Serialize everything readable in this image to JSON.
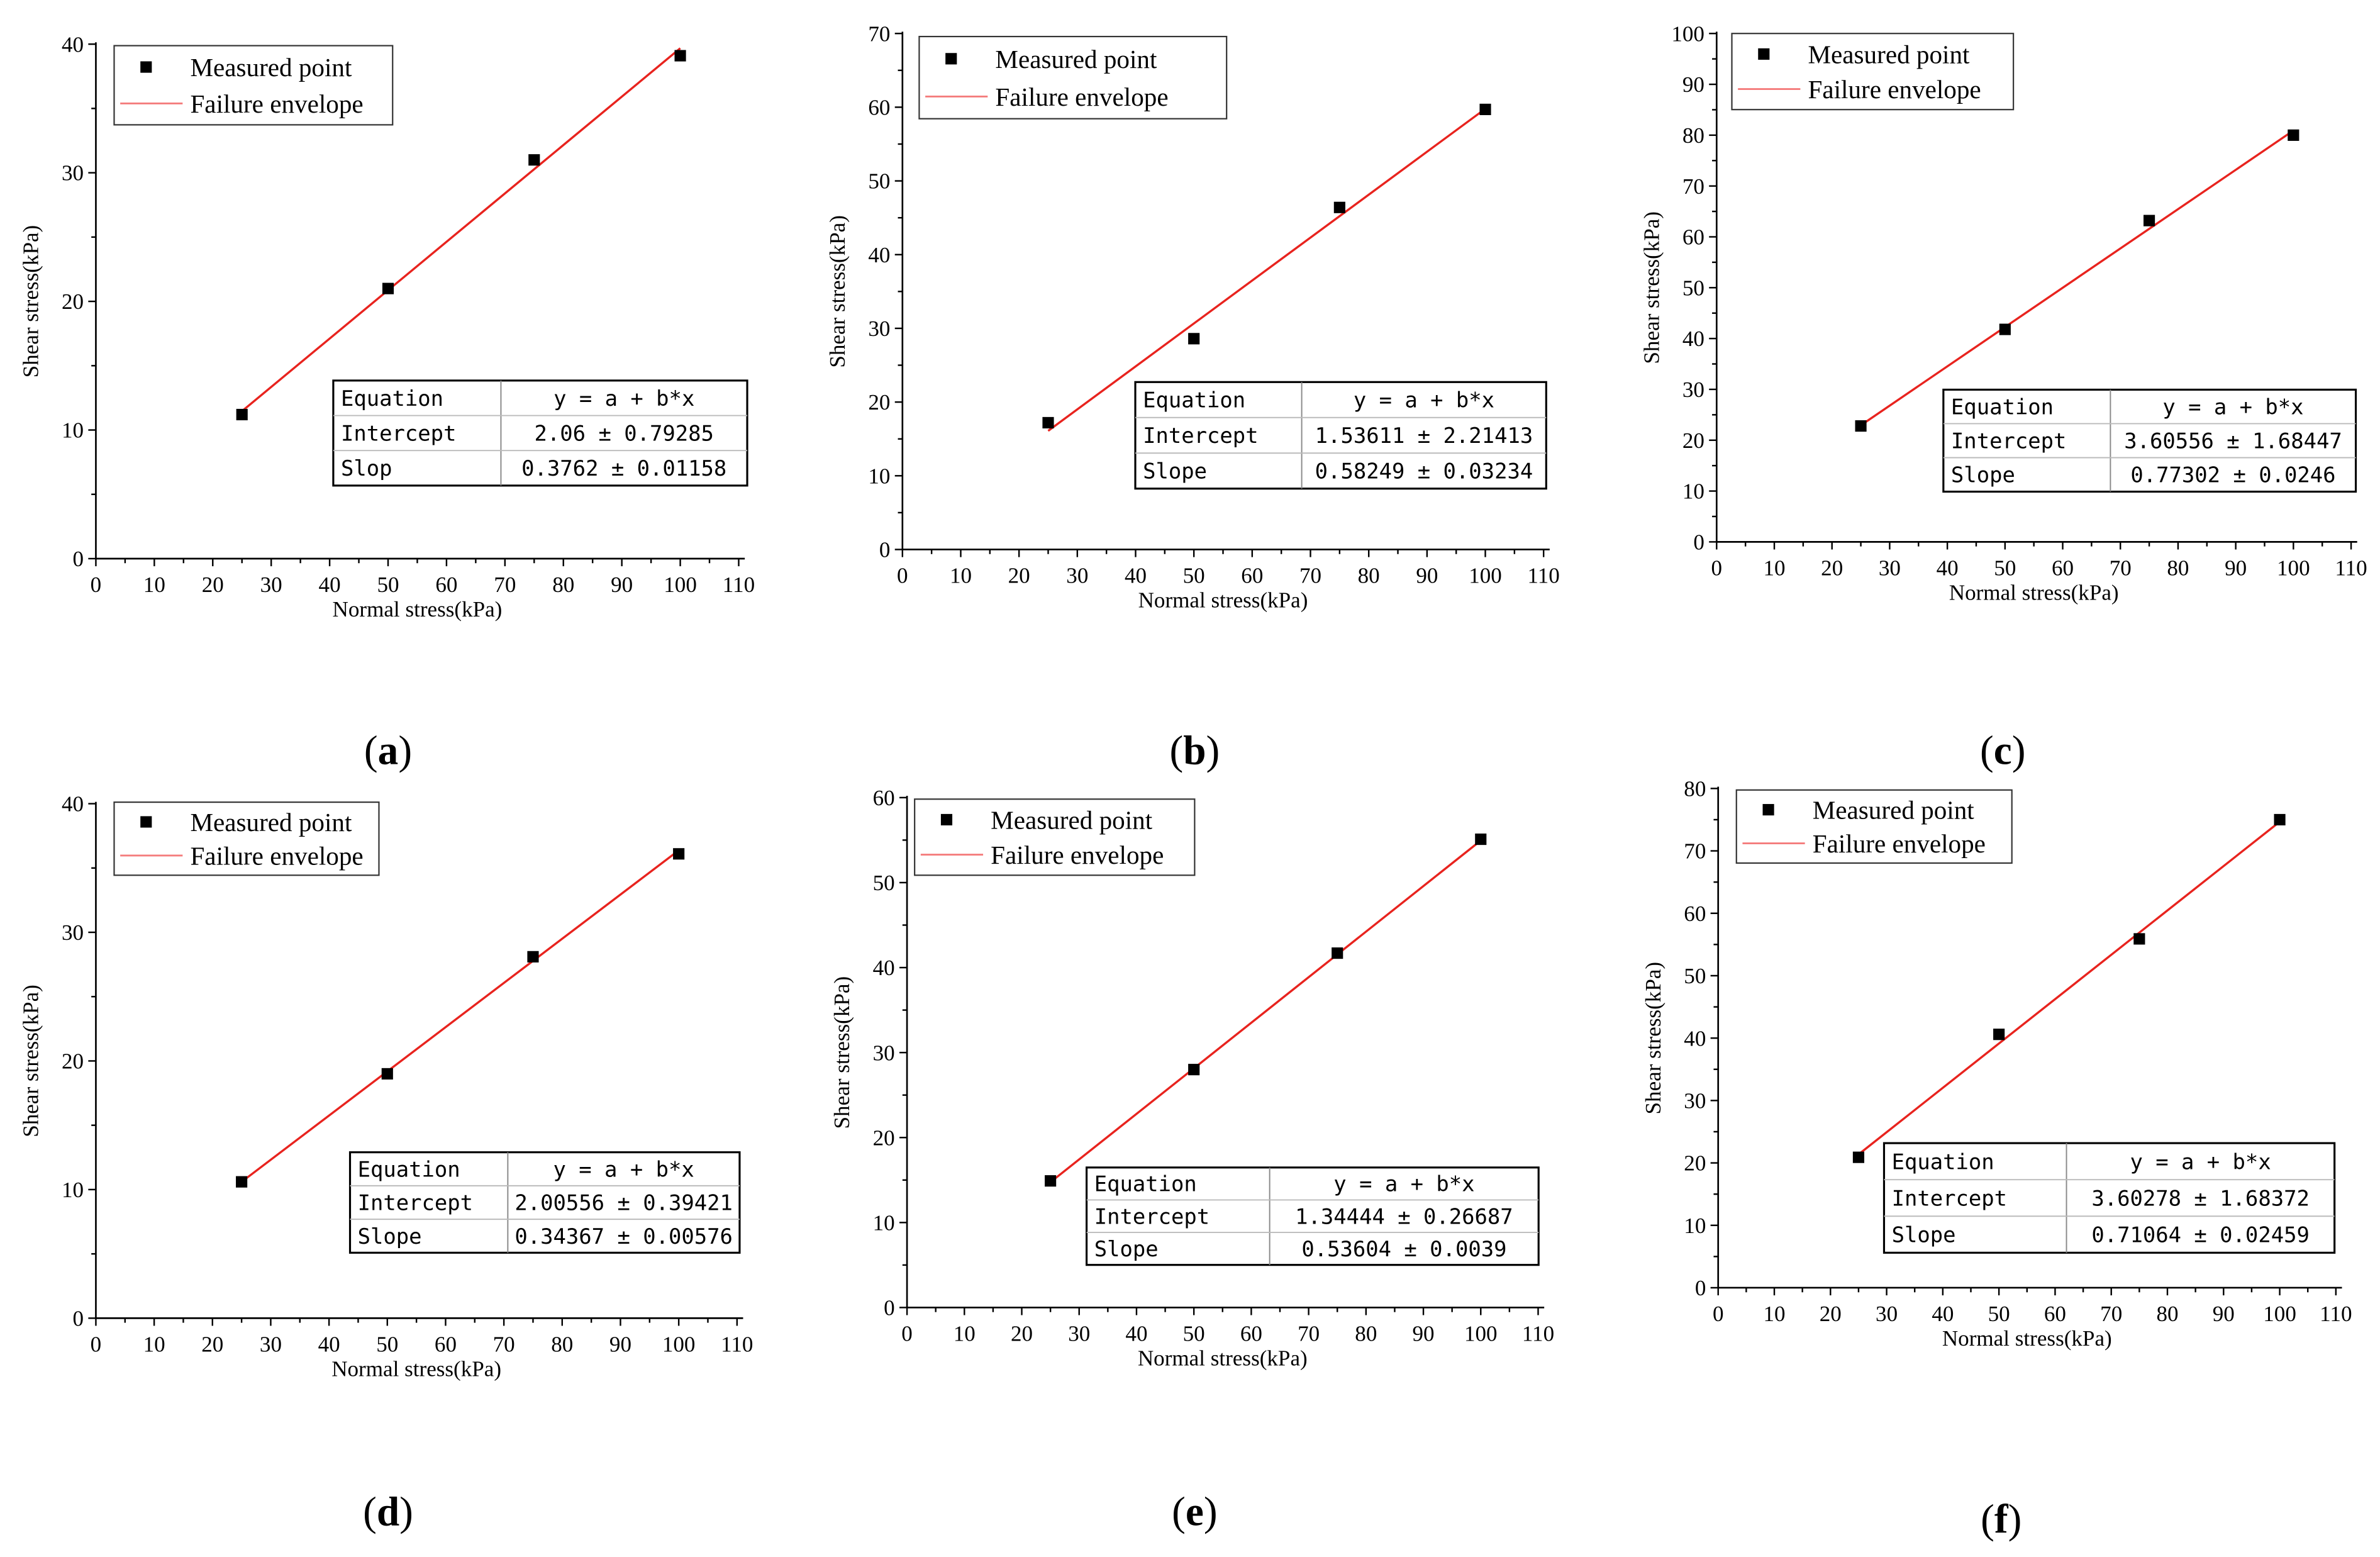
{
  "colors": {
    "axis": "#000000",
    "marker": "#000000",
    "fit_line": "#e8231e",
    "legend_line": "#f47c7c",
    "background": "#ffffff"
  },
  "chart_data": [
    {
      "type": "scatter",
      "panel_label": "a",
      "xlabel": "Normal stress(kPa)",
      "ylabel": "Shear stress(kPa)",
      "xlim": [
        0,
        110
      ],
      "ylim": [
        0,
        40
      ],
      "xticks": [
        0,
        10,
        20,
        30,
        40,
        50,
        60,
        70,
        80,
        90,
        100,
        110
      ],
      "yticks": [
        0,
        10,
        20,
        30,
        40
      ],
      "legend": [
        "Measured point",
        "Failure envelope"
      ],
      "series": [
        {
          "name": "Measured point",
          "x": [
            25,
            50,
            75,
            100
          ],
          "y": [
            11.2,
            21.0,
            31.0,
            39.1
          ]
        }
      ],
      "fit": {
        "name": "Failure envelope",
        "intercept": 2.06,
        "slope": 0.3762,
        "x_range": [
          25,
          100
        ]
      },
      "stats_table": {
        "equation_label": "Equation",
        "equation": "y = a + b*x",
        "intercept_label": "Intercept",
        "intercept": "2.06 ± 0.79285",
        "slope_label": "Slop",
        "slope": "0.3762 ± 0.01158"
      }
    },
    {
      "type": "scatter",
      "panel_label": "b",
      "xlabel": "Normal stress(kPa)",
      "ylabel": "Shear stress(kPa)",
      "xlim": [
        0,
        110
      ],
      "ylim": [
        0,
        70
      ],
      "xticks": [
        0,
        10,
        20,
        30,
        40,
        50,
        60,
        70,
        80,
        90,
        100,
        110
      ],
      "yticks": [
        0,
        10,
        20,
        30,
        40,
        50,
        60,
        70
      ],
      "legend": [
        "Measured point",
        "Failure envelope"
      ],
      "series": [
        {
          "name": "Measured point",
          "x": [
            25,
            50,
            75,
            100
          ],
          "y": [
            17.2,
            28.6,
            46.4,
            59.7
          ]
        }
      ],
      "fit": {
        "name": "Failure envelope",
        "intercept": 1.53611,
        "slope": 0.58249,
        "x_range": [
          25,
          100
        ]
      },
      "stats_table": {
        "equation_label": "Equation",
        "equation": "y = a + b*x",
        "intercept_label": "Intercept",
        "intercept": "1.53611 ± 2.21413",
        "slope_label": "Slope",
        "slope": "0.58249 ± 0.03234"
      }
    },
    {
      "type": "scatter",
      "panel_label": "c",
      "xlabel": "Normal stress(kPa)",
      "ylabel": "Shear stress(kPa)",
      "xlim": [
        0,
        110
      ],
      "ylim": [
        0,
        100
      ],
      "xticks": [
        0,
        10,
        20,
        30,
        40,
        50,
        60,
        70,
        80,
        90,
        100,
        110
      ],
      "yticks": [
        0,
        10,
        20,
        30,
        40,
        50,
        60,
        70,
        80,
        90,
        100
      ],
      "legend": [
        "Measured point",
        "Failure envelope"
      ],
      "series": [
        {
          "name": "Measured point",
          "x": [
            25,
            50,
            75,
            100
          ],
          "y": [
            22.8,
            41.8,
            63.2,
            80.0
          ]
        }
      ],
      "fit": {
        "name": "Failure envelope",
        "intercept": 3.60556,
        "slope": 0.77302,
        "x_range": [
          25,
          100
        ]
      },
      "stats_table": {
        "equation_label": "Equation",
        "equation": "y = a + b*x",
        "intercept_label": "Intercept",
        "intercept": "3.60556 ± 1.68447",
        "slope_label": "Slope",
        "slope": "0.77302 ± 0.0246"
      }
    },
    {
      "type": "scatter",
      "panel_label": "d",
      "xlabel": "Normal stress(kPa)",
      "ylabel": "Shear stress(kPa)",
      "xlim": [
        0,
        110
      ],
      "ylim": [
        0,
        40
      ],
      "xticks": [
        0,
        10,
        20,
        30,
        40,
        50,
        60,
        70,
        80,
        90,
        100,
        110
      ],
      "yticks": [
        0,
        10,
        20,
        30,
        40
      ],
      "legend": [
        "Measured point",
        "Failure envelope"
      ],
      "series": [
        {
          "name": "Measured point",
          "x": [
            25,
            50,
            75,
            100
          ],
          "y": [
            10.6,
            19.0,
            28.1,
            36.1
          ]
        }
      ],
      "fit": {
        "name": "Failure envelope",
        "intercept": 2.00556,
        "slope": 0.34367,
        "x_range": [
          25,
          100
        ]
      },
      "stats_table": {
        "equation_label": "Equation",
        "equation": "y = a + b*x",
        "intercept_label": "Intercept",
        "intercept": "2.00556 ± 0.39421",
        "slope_label": "Slope",
        "slope": "0.34367 ± 0.00576"
      }
    },
    {
      "type": "scatter",
      "panel_label": "e",
      "xlabel": "Normal stress(kPa)",
      "ylabel": "Shear stress(kPa)",
      "xlim": [
        0,
        110
      ],
      "ylim": [
        0,
        60
      ],
      "xticks": [
        0,
        10,
        20,
        30,
        40,
        50,
        60,
        70,
        80,
        90,
        100,
        110
      ],
      "yticks": [
        0,
        10,
        20,
        30,
        40,
        50,
        60
      ],
      "legend": [
        "Measured point",
        "Failure envelope"
      ],
      "series": [
        {
          "name": "Measured point",
          "x": [
            25,
            50,
            75,
            100
          ],
          "y": [
            14.9,
            28.0,
            41.7,
            55.1
          ]
        }
      ],
      "fit": {
        "name": "Failure envelope",
        "intercept": 1.34444,
        "slope": 0.53604,
        "x_range": [
          25,
          100
        ]
      },
      "stats_table": {
        "equation_label": "Equation",
        "equation": "y = a + b*x",
        "intercept_label": "Intercept",
        "intercept": "1.34444 ± 0.26687",
        "slope_label": "Slope",
        "slope": "0.53604 ± 0.0039"
      }
    },
    {
      "type": "scatter",
      "panel_label": "f",
      "xlabel": "Normal stress(kPa)",
      "ylabel": "Shear stress(kPa)",
      "xlim": [
        0,
        110
      ],
      "ylim": [
        0,
        80
      ],
      "xticks": [
        0,
        10,
        20,
        30,
        40,
        50,
        60,
        70,
        80,
        90,
        100,
        110
      ],
      "yticks": [
        0,
        10,
        20,
        30,
        40,
        50,
        60,
        70,
        80
      ],
      "legend": [
        "Measured point",
        "Failure envelope"
      ],
      "series": [
        {
          "name": "Measured point",
          "x": [
            25,
            50,
            75,
            100
          ],
          "y": [
            20.9,
            40.6,
            55.9,
            75.0
          ]
        }
      ],
      "fit": {
        "name": "Failure envelope",
        "intercept": 3.60278,
        "slope": 0.71064,
        "x_range": [
          25,
          100
        ]
      },
      "stats_table": {
        "equation_label": "Equation",
        "equation": "y = a + b*x",
        "intercept_label": "Intercept",
        "intercept": "3.60278 ± 1.68372",
        "slope_label": "Slope",
        "slope": "0.71064 ± 0.02459"
      }
    }
  ]
}
